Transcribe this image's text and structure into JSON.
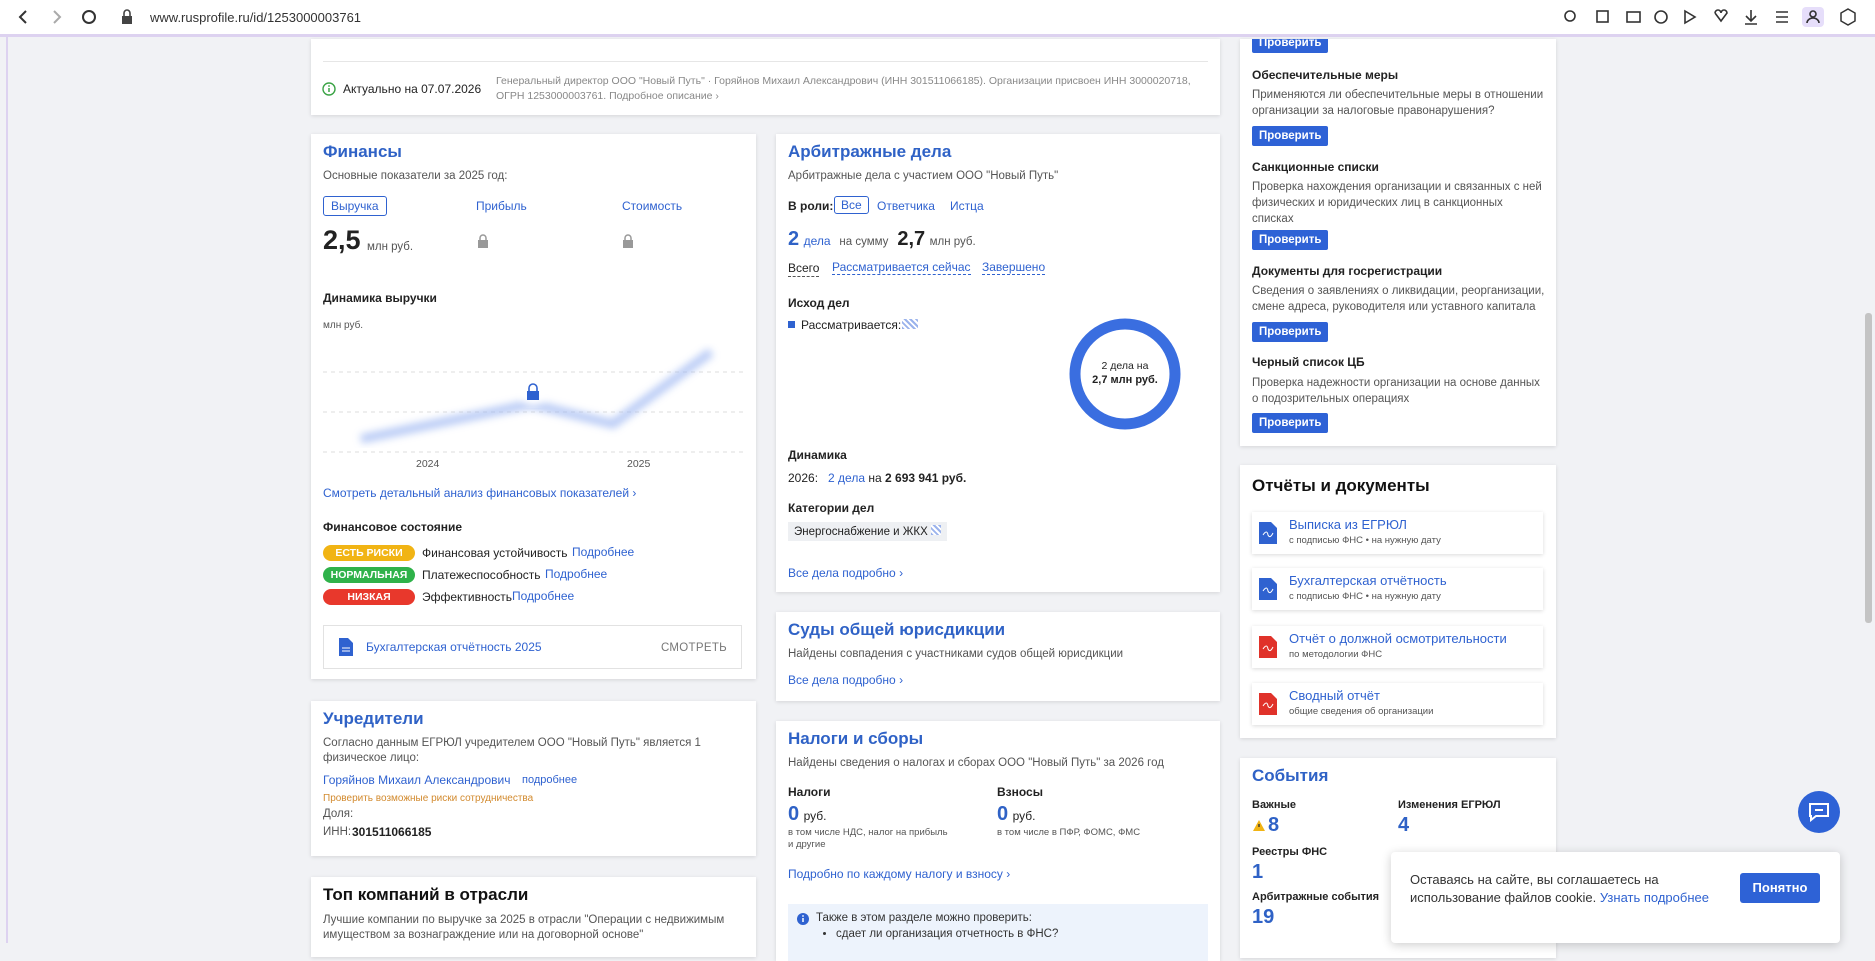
{
  "browser": {
    "url": "www.rusprofile.ru/id/1253000003761"
  },
  "summary": {
    "status": "Актуально на 07.07.2026",
    "description": "Генеральный директор ООО \"Новый Путь\" · Горяйнов Михаил Александрович (ИНН 301511066185). Организации присвоен ИНН 3000020718, ОГРН 1253000003761. Подробное описание ›"
  },
  "finances": {
    "title": "Финансы",
    "subtitle": "Основные показатели за 2025 год:",
    "tabs": [
      "Выручка",
      "Прибыль",
      "Стоимость"
    ],
    "value": "2,5",
    "unit": "млн руб.",
    "chart_title": "Динамика выручки",
    "chart_unit": "млн руб.",
    "years": [
      "2024",
      "2025"
    ],
    "link": "Смотреть детальный анализ финансовых показателей ›",
    "state_title": "Финансовое состояние",
    "states": [
      {
        "badge": "ЕСТЬ РИСКИ",
        "label": "Финансовая устойчивость",
        "link": "Подробнее"
      },
      {
        "badge": "НОРМАЛЬНАЯ",
        "label": "Платежеспособность",
        "link": "Подробнее"
      },
      {
        "badge": "НИЗКАЯ",
        "label": "Эффективность",
        "link": "Подробнее"
      }
    ],
    "report": "Бухгалтерская отчётность 2025",
    "report_action": "СМОТРЕТЬ"
  },
  "founders": {
    "title": "Учредители",
    "text": "Согласно данным ЕГРЮЛ учредителем ООО \"Новый Путь\" является 1 физическое лицо:",
    "name": "Горяйнов Михаил Александрович",
    "more": "подробнее",
    "risk": "Проверить возможные риски сотрудничества",
    "share_label": "Доля:",
    "inn_label": "ИНН:",
    "inn": "301511066185"
  },
  "top_companies": {
    "title": "Топ компаний в отрасли",
    "text": "Лучшие компании по выручке за 2025 в отрасли \"Операции с недвижимым имуществом за вознаграждение или на договорной основе\""
  },
  "arbitration": {
    "title": "Арбитражные дела",
    "subtitle": "Арбитражные дела с участием ООО \"Новый Путь\"",
    "role_label": "В роли:",
    "roles": [
      "Все",
      "Ответчика",
      "Истца"
    ],
    "count": "2",
    "count_unit": "дела",
    "sum_label": "на сумму",
    "sum": "2,7",
    "sum_unit": "млн руб.",
    "filters": [
      "Всего",
      "Рассматривается сейчас",
      "Завершено"
    ],
    "outcome_title": "Исход дел",
    "legend": "Рассматривается:",
    "donut_line1": "2 дела на",
    "donut_line2": "2,7 млн руб.",
    "dynamics_title": "Динамика",
    "dynamics_year": "2026:",
    "dynamics_count": "2 дела",
    "dynamics_on": "на",
    "dynamics_sum": "2 693 941 руб.",
    "categories_title": "Категории дел",
    "category": "Энергоснабжение и ЖКХ",
    "link": "Все дела подробно ›"
  },
  "courts": {
    "title": "Суды общей юрисдикции",
    "text": "Найдены совпадения с участниками судов общей юрисдикции",
    "link": "Все дела подробно ›"
  },
  "taxes": {
    "title": "Налоги и сборы",
    "text": "Найдены сведения о налогах и сборах ООО \"Новый Путь\" за 2026 год",
    "columns": [
      {
        "title": "Налоги",
        "value": "0",
        "unit": "руб.",
        "note": "в том числе НДС, налог на прибыль и другие"
      },
      {
        "title": "Взносы",
        "value": "0",
        "unit": "руб.",
        "note": "в том числе в ПФР, ФОМС, ФМС"
      }
    ],
    "link": "Подробно по каждому налогу и взносу ›",
    "info": "Также в этом разделе можно проверить:",
    "info_items": [
      "сдает ли организация отчетность в ФНС?"
    ]
  },
  "checks": {
    "button": "Проверить",
    "items": [
      {
        "title": "Обеспечительные меры",
        "text": "Применяются ли обеспечительные меры в отношении организации за налоговые правонарушения?"
      },
      {
        "title": "Санкционные списки",
        "text": "Проверка нахождения организации и связанных с ней физических и юридических лиц в санкционных списках"
      },
      {
        "title": "Документы для госрегистрации",
        "text": "Сведения о заявлениях о ликвидации, реорганизации, смене адреса, руководителя или уставного капитала"
      },
      {
        "title": "Черный список ЦБ",
        "text": "Проверка надежности организации на основе данных о подозрительных операциях"
      }
    ]
  },
  "reports": {
    "title": "Отчёты и документы",
    "items": [
      {
        "title": "Выписка из ЕГРЮЛ",
        "text": "с подписью ФНС • на нужную дату"
      },
      {
        "title": "Бухгалтерская отчётность",
        "text": "с подписью ФНС • на нужную дату"
      },
      {
        "title": "Отчёт о должной осмотрительности",
        "text": "по методологии ФНС"
      },
      {
        "title": "Сводный отчёт",
        "text": "общие сведения об организации"
      }
    ]
  },
  "events": {
    "title": "События",
    "items": [
      {
        "label": "Важные",
        "value": "8"
      },
      {
        "label": "Изменения ЕГРЮЛ",
        "value": "4"
      },
      {
        "label": "Реестры ФНС",
        "value": "1"
      },
      {
        "label": "Арбитражные события",
        "value": "19"
      }
    ]
  },
  "cookie": {
    "text": "Оставаясь на сайте, вы соглашаетесь на использование файлов cookie.",
    "link": "Узнать подробнее",
    "button": "Понятно"
  }
}
